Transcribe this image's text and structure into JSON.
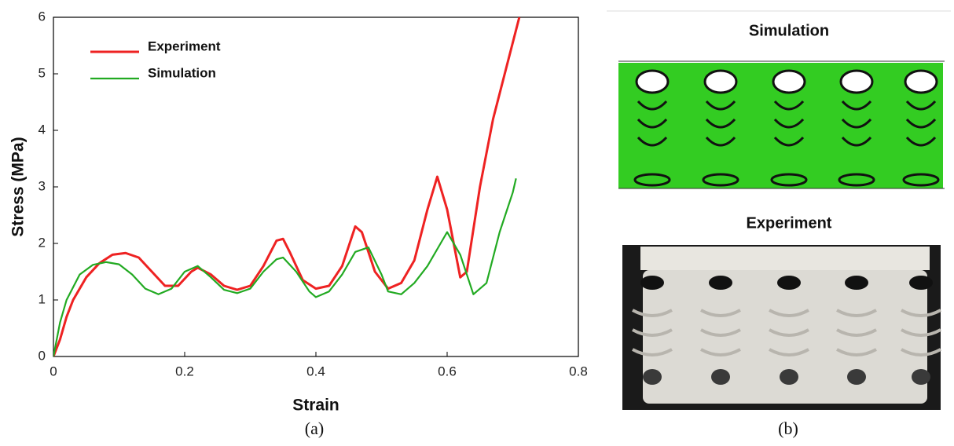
{
  "chart_data": {
    "type": "line",
    "x_label": "Strain",
    "y_label": "Stress (MPa)",
    "xlim": [
      0,
      0.8
    ],
    "ylim": [
      0,
      6
    ],
    "xticks": [
      0,
      0.2,
      0.4,
      0.6,
      0.8
    ],
    "yticks": [
      0,
      1,
      2,
      3,
      4,
      5,
      6
    ],
    "legend": "upper-left",
    "series": [
      {
        "name": "Experiment",
        "color": "#ee2222",
        "x": [
          0,
          0.01,
          0.02,
          0.03,
          0.05,
          0.07,
          0.09,
          0.11,
          0.13,
          0.15,
          0.17,
          0.19,
          0.21,
          0.22,
          0.24,
          0.26,
          0.28,
          0.3,
          0.32,
          0.34,
          0.35,
          0.36,
          0.38,
          0.4,
          0.42,
          0.44,
          0.46,
          0.47,
          0.49,
          0.51,
          0.53,
          0.55,
          0.57,
          0.585,
          0.6,
          0.62,
          0.63,
          0.65,
          0.67,
          0.69,
          0.71
        ],
        "values": [
          0,
          0.3,
          0.7,
          1.0,
          1.4,
          1.65,
          1.8,
          1.83,
          1.75,
          1.5,
          1.25,
          1.25,
          1.5,
          1.57,
          1.45,
          1.25,
          1.18,
          1.25,
          1.6,
          2.05,
          2.08,
          1.85,
          1.35,
          1.2,
          1.25,
          1.6,
          2.3,
          2.2,
          1.5,
          1.2,
          1.3,
          1.7,
          2.6,
          3.18,
          2.6,
          1.4,
          1.5,
          3.0,
          4.2,
          5.1,
          6.0
        ]
      },
      {
        "name": "Simulation",
        "color": "#22aa22",
        "x": [
          0,
          0.01,
          0.02,
          0.04,
          0.06,
          0.08,
          0.1,
          0.12,
          0.14,
          0.16,
          0.18,
          0.2,
          0.22,
          0.24,
          0.26,
          0.28,
          0.3,
          0.32,
          0.34,
          0.35,
          0.37,
          0.39,
          0.4,
          0.42,
          0.44,
          0.46,
          0.48,
          0.5,
          0.51,
          0.53,
          0.55,
          0.57,
          0.59,
          0.6,
          0.62,
          0.64,
          0.66,
          0.68,
          0.7,
          0.705
        ],
        "values": [
          0,
          0.6,
          1.0,
          1.45,
          1.62,
          1.67,
          1.63,
          1.45,
          1.2,
          1.1,
          1.2,
          1.5,
          1.6,
          1.4,
          1.18,
          1.12,
          1.2,
          1.5,
          1.72,
          1.75,
          1.5,
          1.15,
          1.05,
          1.15,
          1.45,
          1.85,
          1.93,
          1.45,
          1.15,
          1.1,
          1.3,
          1.6,
          2.0,
          2.2,
          1.8,
          1.1,
          1.3,
          2.2,
          2.9,
          3.15
        ]
      }
    ]
  },
  "panel_b": {
    "simulation_title": "Simulation",
    "experiment_title": "Experiment"
  },
  "captions": [
    "(a)",
    "(b)"
  ]
}
